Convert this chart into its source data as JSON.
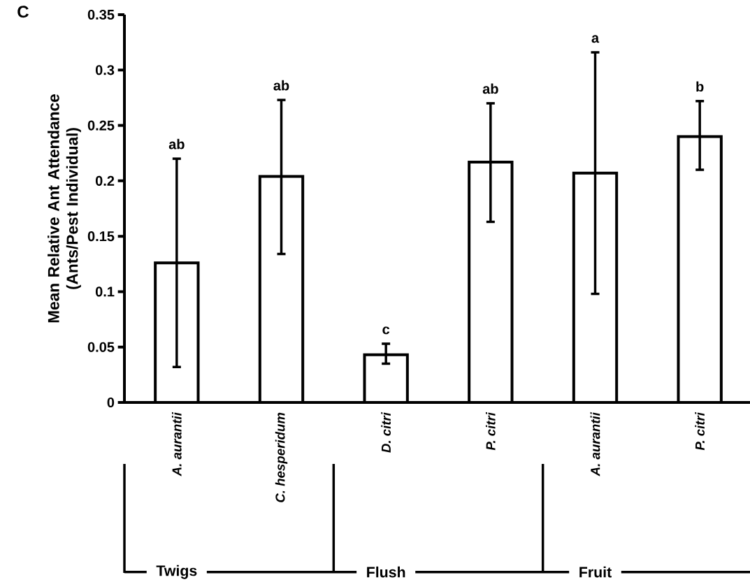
{
  "chart_data": {
    "type": "bar",
    "categories": [
      "A. aurantii",
      "C. hesperidum",
      "D. citri",
      "P. citri",
      "A. aurantii",
      "P. citri"
    ],
    "values": [
      0.126,
      0.204,
      0.043,
      0.217,
      0.207,
      0.24
    ],
    "errors": [
      [
        0.032,
        0.22
      ],
      [
        0.134,
        0.273
      ],
      [
        0.035,
        0.053
      ],
      [
        0.163,
        0.27
      ],
      [
        0.098,
        0.316
      ],
      [
        0.21,
        0.272
      ]
    ],
    "color": "#ffffff",
    "ylabel": "Mean Relative Ant Attendance (Ants/Pest Individual)",
    "ylim": [
      0,
      0.35
    ],
    "yticks": [
      0,
      0.05,
      0.1,
      0.15,
      0.2,
      0.25,
      0.3,
      0.35
    ],
    "annotations": [
      "ab",
      "ab",
      "c",
      "ab",
      "a",
      "b",
      "C",
      "Twigs",
      "Flush",
      "Fruit"
    ]
  }
}
